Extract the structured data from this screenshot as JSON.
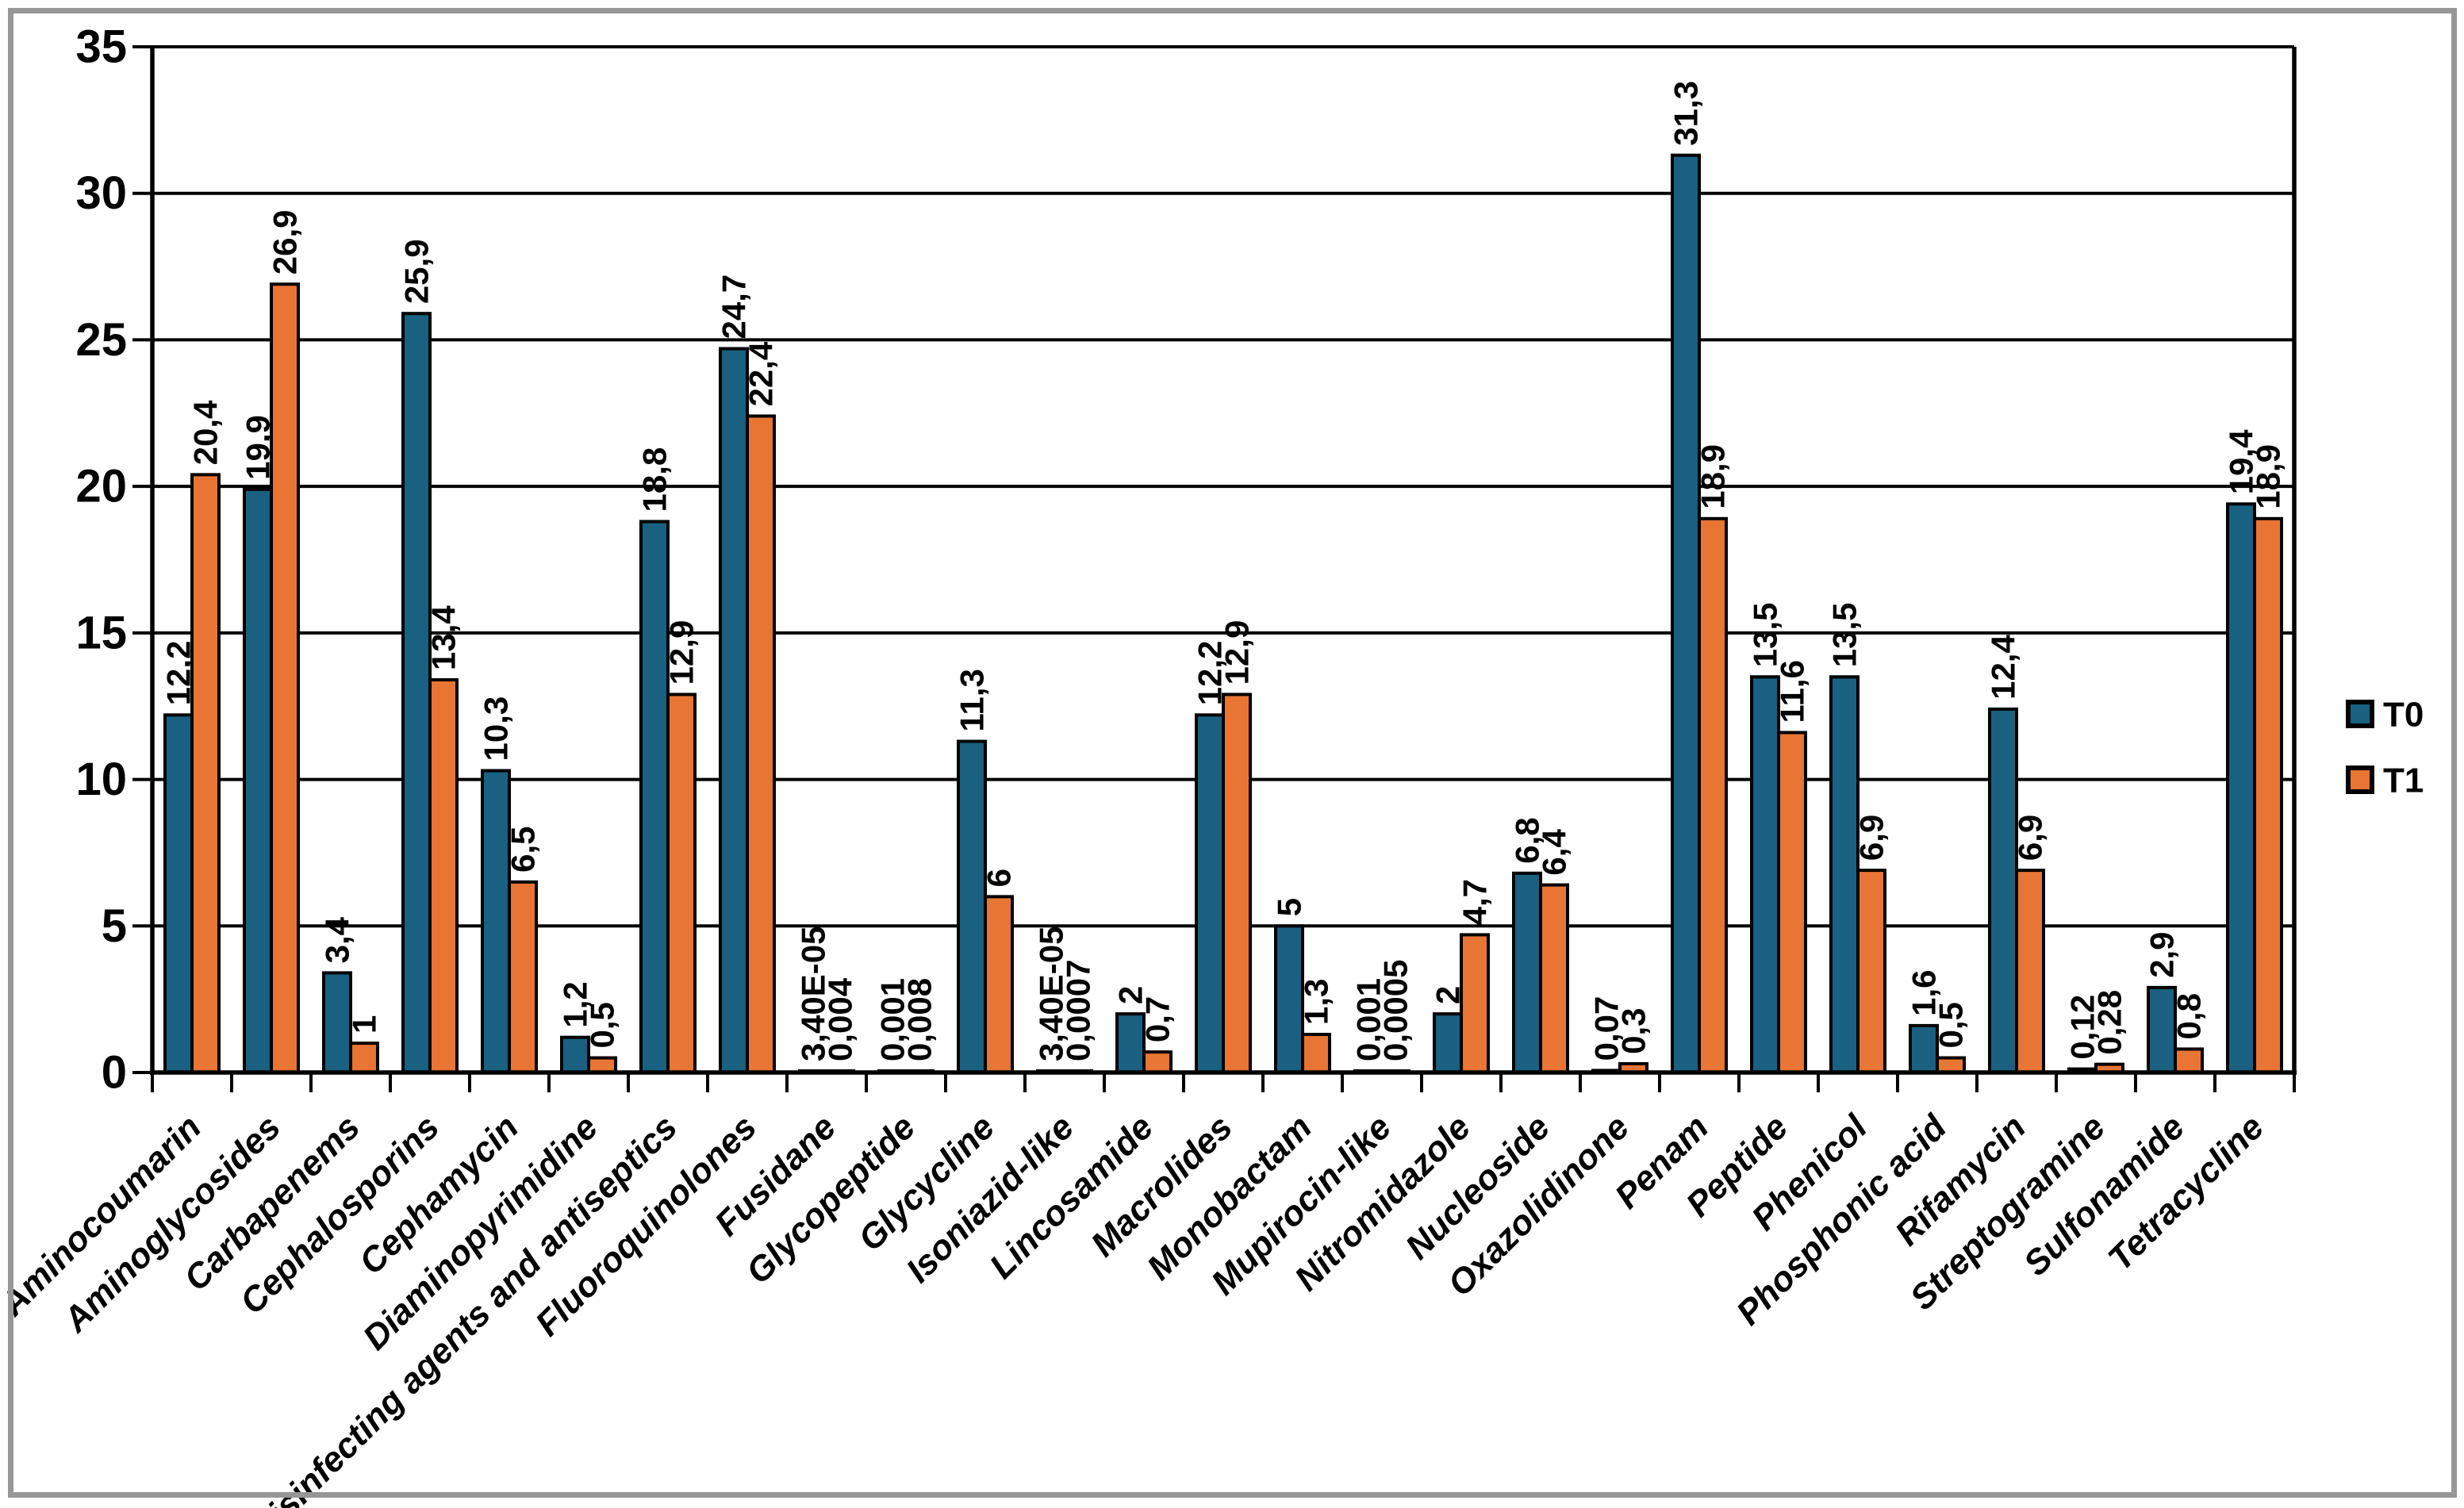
{
  "legend": {
    "items": [
      {
        "label": "T0"
      },
      {
        "label": "T1"
      }
    ]
  },
  "chart_data": {
    "type": "bar",
    "title": "",
    "xlabel": "",
    "ylabel": "",
    "ylim": [
      0,
      35
    ],
    "yticks": [
      0,
      5,
      10,
      15,
      20,
      25,
      30,
      35
    ],
    "grid": true,
    "legend_position": "right",
    "bar_outline_color": "#000000",
    "categories": [
      "Aminocoumarin",
      "Aminoglycosides",
      "Carbapenems",
      "Cephalosporins",
      "Cephamycin",
      "Diaminopyrimidine",
      "Disinfecting agents and antiseptics",
      "Fluoroquinolones",
      "Fusidane",
      "Glycopeptide",
      "Glycycline",
      "Isoniazid-like",
      "Lincosamide",
      "Macrolides",
      "Monobactam",
      "Mupirocin-like",
      "Nitromidazole",
      "Nucleoside",
      "Oxazolidinone",
      "Penam",
      "Peptide",
      "Phenicol",
      "Phosphonic acid",
      "Rifamycin",
      "Streptogramine",
      "Sulfonamide",
      "Tetracycline"
    ],
    "series": [
      {
        "name": "T0",
        "color": "#1A6080",
        "values": [
          12.2,
          19.9,
          3.4,
          25.9,
          10.3,
          1.2,
          18.8,
          24.7,
          3.4e-05,
          0.001,
          11.3,
          3.4e-05,
          2,
          12.2,
          5,
          0.001,
          2,
          6.8,
          0.07,
          31.3,
          13.5,
          13.5,
          1.6,
          12.4,
          0.12,
          2.9,
          19.4
        ],
        "labels": [
          "12,2",
          "19,9",
          "3,4",
          "25,9",
          "10,3",
          "1,2",
          "18,8",
          "24,7",
          "3,40E-05",
          "0,001",
          "11,3",
          "3,40E-05",
          "2",
          "12,2",
          "5",
          "0,001",
          "2",
          "6,8",
          "0,07",
          "31,3",
          "13,5",
          "13,5",
          "1,6",
          "12,4",
          "0,12",
          "2,9",
          "19,4"
        ]
      },
      {
        "name": "T1",
        "color": "#E87534",
        "values": [
          20.4,
          26.9,
          1,
          13.4,
          6.5,
          0.5,
          12.9,
          22.4,
          0.004,
          0.008,
          6,
          0.0007,
          0.7,
          12.9,
          1.3,
          0.0005,
          4.7,
          6.4,
          0.3,
          18.9,
          11.6,
          6.9,
          0.5,
          6.9,
          0.28,
          0.8,
          18.9
        ],
        "labels": [
          "20,4",
          "26,9",
          "1",
          "13,4",
          "6,5",
          "0,5",
          "12,9",
          "22,4",
          "0,004",
          "0,008",
          "6",
          "0,0007",
          "0,7",
          "12,9",
          "1,3",
          "0,0005",
          "4,7",
          "6,4",
          "0,3",
          "18,9",
          "11,6",
          "6,9",
          "0,5",
          "6,9",
          "0,28",
          "0,8",
          "18,9"
        ]
      }
    ]
  }
}
